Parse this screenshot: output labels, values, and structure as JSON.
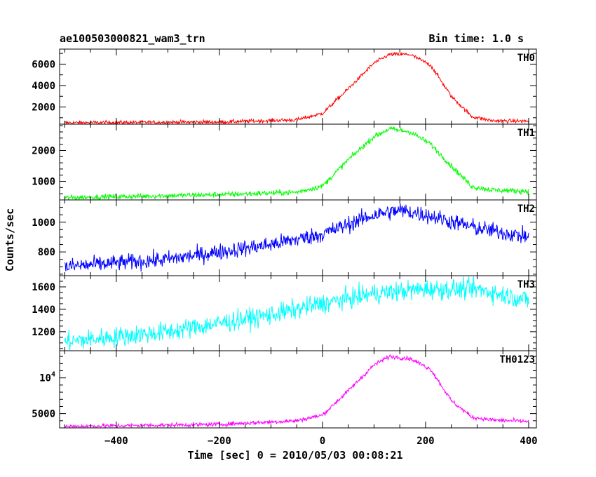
{
  "header": {
    "title": "ae100503000821_wam3_trn",
    "bin_time": "Bin time: 1.0 s"
  },
  "xlabel": "Time [sec] 0 = 2010/05/03 00:08:21",
  "ylabel": "Counts/sec",
  "chart_data": {
    "type": "line",
    "title": "ae100503000821_wam3_trn",
    "xlabel": "Time [sec] 0 = 2010/05/03 00:08:21",
    "ylabel": "Counts/sec",
    "xlim": [
      -510,
      415
    ],
    "x_ticks": [
      -400,
      -200,
      0,
      200,
      400
    ],
    "grid": false,
    "panels": [
      {
        "name": "TH0",
        "color": "#ff0000",
        "ylim": [
          400,
          7400
        ],
        "y_ticks": [
          2000,
          4000,
          6000
        ],
        "y_tick_labels": [
          "2000",
          "4000",
          "6000"
        ],
        "noise": 90,
        "points": [
          [
            -500,
            530
          ],
          [
            -200,
            600
          ],
          [
            -50,
            800
          ],
          [
            0,
            1400
          ],
          [
            50,
            3700
          ],
          [
            100,
            6100
          ],
          [
            130,
            6900
          ],
          [
            170,
            6900
          ],
          [
            210,
            5900
          ],
          [
            250,
            3000
          ],
          [
            290,
            1100
          ],
          [
            330,
            720
          ],
          [
            400,
            680
          ]
        ]
      },
      {
        "name": "TH1",
        "color": "#00ff00",
        "ylim": [
          400,
          2850
        ],
        "y_ticks": [
          1000,
          2000
        ],
        "y_tick_labels": [
          "1000",
          "2000"
        ],
        "noise": 45,
        "points": [
          [
            -500,
            470
          ],
          [
            -200,
            570
          ],
          [
            -50,
            650
          ],
          [
            0,
            850
          ],
          [
            50,
            1700
          ],
          [
            100,
            2450
          ],
          [
            130,
            2700
          ],
          [
            170,
            2600
          ],
          [
            210,
            2200
          ],
          [
            250,
            1500
          ],
          [
            290,
            830
          ],
          [
            330,
            720
          ],
          [
            400,
            680
          ]
        ]
      },
      {
        "name": "TH2",
        "color": "#0000ff",
        "ylim": [
          640,
          1150
        ],
        "y_ticks": [
          800,
          1000
        ],
        "y_tick_labels": [
          "800",
          "1000"
        ],
        "noise": 28,
        "points": [
          [
            -500,
            700
          ],
          [
            -300,
            750
          ],
          [
            -100,
            850
          ],
          [
            0,
            920
          ],
          [
            100,
            1050
          ],
          [
            150,
            1080
          ],
          [
            200,
            1050
          ],
          [
            300,
            960
          ],
          [
            400,
            900
          ]
        ]
      },
      {
        "name": "TH3",
        "color": "#00ffff",
        "ylim": [
          1030,
          1700
        ],
        "y_ticks": [
          1200,
          1400,
          1600
        ],
        "y_tick_labels": [
          "1200",
          "1400",
          "1600"
        ],
        "noise": 45,
        "points": [
          [
            -500,
            1110
          ],
          [
            -300,
            1200
          ],
          [
            -100,
            1350
          ],
          [
            0,
            1450
          ],
          [
            100,
            1540
          ],
          [
            200,
            1580
          ],
          [
            300,
            1580
          ],
          [
            400,
            1480
          ]
        ]
      },
      {
        "name": "TH0123",
        "color": "#ff00ff",
        "ylim": [
          3000,
          13800
        ],
        "y_ticks": [
          5000,
          10000
        ],
        "y_tick_labels": [
          "5000",
          "10^4"
        ],
        "noise": 150,
        "points": [
          [
            -500,
            3200
          ],
          [
            -200,
            3500
          ],
          [
            -50,
            4000
          ],
          [
            0,
            4800
          ],
          [
            50,
            8200
          ],
          [
            100,
            11800
          ],
          [
            130,
            13000
          ],
          [
            170,
            12700
          ],
          [
            210,
            11200
          ],
          [
            250,
            6800
          ],
          [
            290,
            4500
          ],
          [
            330,
            4100
          ],
          [
            400,
            3900
          ]
        ]
      }
    ]
  }
}
